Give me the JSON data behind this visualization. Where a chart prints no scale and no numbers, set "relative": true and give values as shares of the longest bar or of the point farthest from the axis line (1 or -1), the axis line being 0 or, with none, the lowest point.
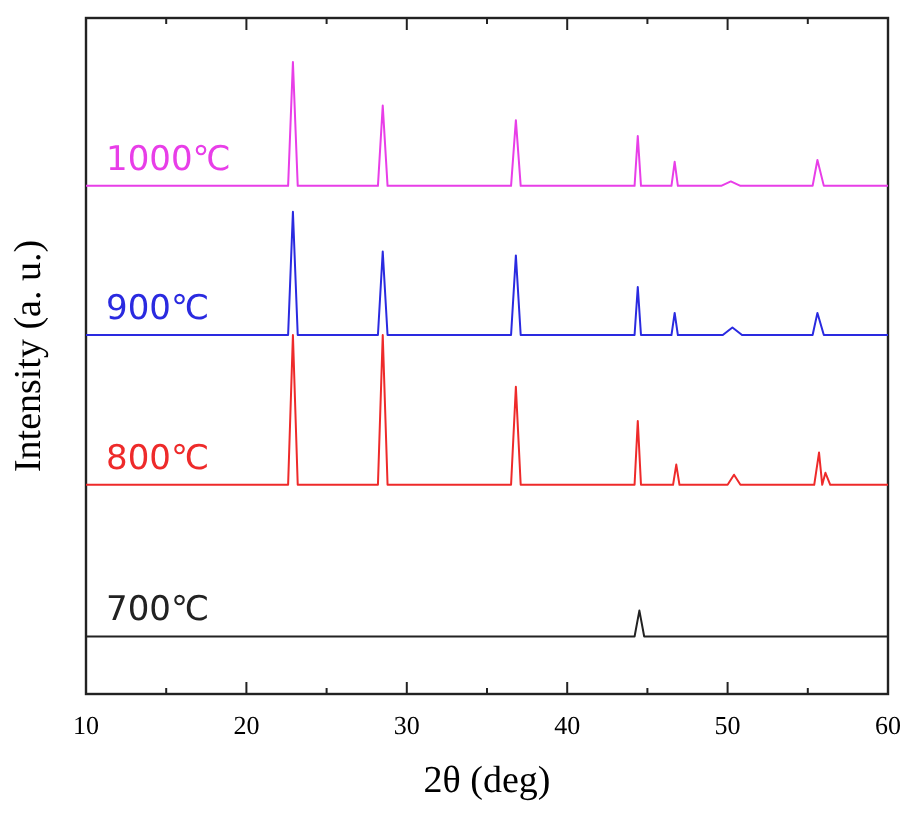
{
  "chart_data": {
    "type": "line",
    "relative": true,
    "xlabel": "2θ (deg)",
    "ylabel": "Intensity (a. u.)",
    "xlim": [
      10,
      60
    ],
    "xticks": [
      10,
      {
        "value": 15,
        "label": null
      },
      20,
      {
        "value": 25,
        "label": null
      },
      30,
      {
        "value": 35,
        "label": null
      },
      40,
      {
        "value": 45,
        "label": null
      },
      50,
      {
        "value": 55,
        "label": null
      },
      60
    ],
    "grid": false,
    "marker": "none",
    "line_style": "solid",
    "series": [
      {
        "name": "1000℃",
        "color": "#e83ee8",
        "x": [
          10,
          22.6,
          22.9,
          23.2,
          28.2,
          28.5,
          28.8,
          36.5,
          36.8,
          37.1,
          44.2,
          44.4,
          44.6,
          46.5,
          46.7,
          46.9,
          49.6,
          50.2,
          50.8,
          55.3,
          55.6,
          56.0,
          60
        ],
        "values": [
          0.804,
          0.804,
          1.0,
          0.804,
          0.804,
          0.931,
          0.804,
          0.804,
          0.908,
          0.804,
          0.804,
          0.883,
          0.804,
          0.804,
          0.842,
          0.804,
          0.804,
          0.811,
          0.804,
          0.804,
          0.845,
          0.804,
          0.804
        ]
      },
      {
        "name": "900℃",
        "color": "#2a2ae0",
        "x": [
          10,
          22.6,
          22.9,
          23.2,
          28.2,
          28.5,
          28.8,
          36.5,
          36.8,
          37.1,
          44.2,
          44.4,
          44.6,
          46.5,
          46.7,
          46.9,
          49.7,
          50.3,
          50.9,
          55.3,
          55.6,
          56.0,
          60
        ],
        "values": [
          0.568,
          0.568,
          0.763,
          0.568,
          0.568,
          0.7,
          0.568,
          0.568,
          0.694,
          0.568,
          0.568,
          0.644,
          0.568,
          0.568,
          0.603,
          0.568,
          0.568,
          0.58,
          0.568,
          0.568,
          0.603,
          0.568,
          0.568
        ]
      },
      {
        "name": "800℃",
        "color": "#ee2a2a",
        "x": [
          10,
          22.6,
          22.9,
          23.2,
          28.2,
          28.5,
          28.8,
          36.5,
          36.8,
          37.1,
          44.2,
          44.4,
          44.6,
          46.6,
          46.8,
          47.0,
          50.0,
          50.4,
          50.8,
          55.4,
          55.7,
          55.9,
          56.1,
          56.4,
          60
        ],
        "values": [
          0.331,
          0.331,
          0.568,
          0.331,
          0.331,
          0.568,
          0.331,
          0.331,
          0.486,
          0.331,
          0.331,
          0.432,
          0.331,
          0.331,
          0.363,
          0.331,
          0.331,
          0.347,
          0.331,
          0.331,
          0.382,
          0.331,
          0.35,
          0.331,
          0.331
        ]
      },
      {
        "name": "700℃",
        "color": "#222222",
        "x": [
          10,
          44.2,
          44.5,
          44.8,
          60
        ],
        "values": [
          0.091,
          0.091,
          0.132,
          0.091,
          0.091
        ]
      }
    ]
  }
}
